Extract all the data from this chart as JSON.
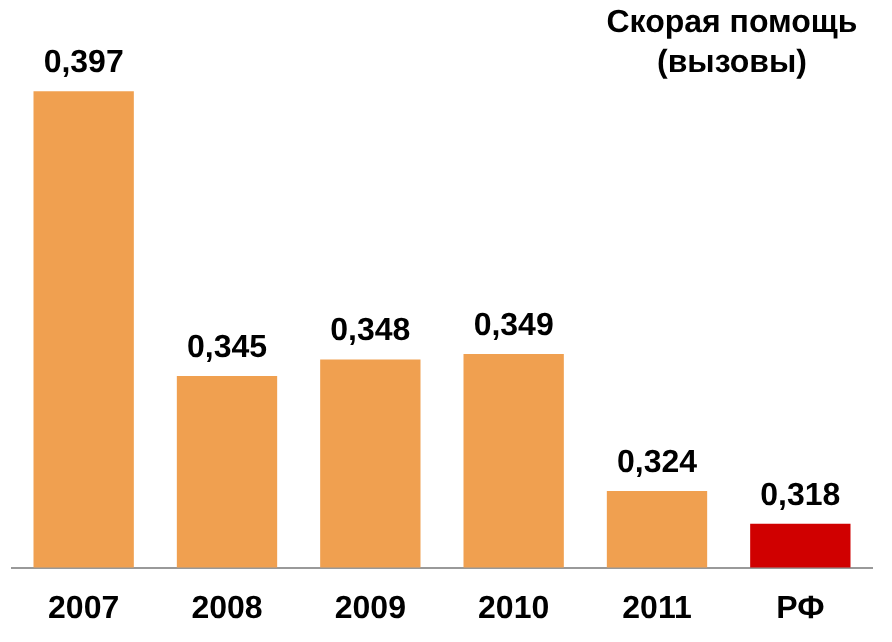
{
  "chart_data": {
    "type": "bar",
    "title": "Скорая помощь (вызовы)",
    "categories": [
      "2007",
      "2008",
      "2009",
      "2010",
      "2011",
      "РФ"
    ],
    "values": [
      0.397,
      0.345,
      0.348,
      0.349,
      0.324,
      0.318
    ],
    "colors": [
      "#f0a050",
      "#f0a050",
      "#f0a050",
      "#f0a050",
      "#f0a050",
      "#d00000"
    ],
    "value_labels": [
      "0,397",
      "0,345",
      "0,348",
      "0,349",
      "0,324",
      "0,318"
    ],
    "grid": false,
    "legend": false
  }
}
